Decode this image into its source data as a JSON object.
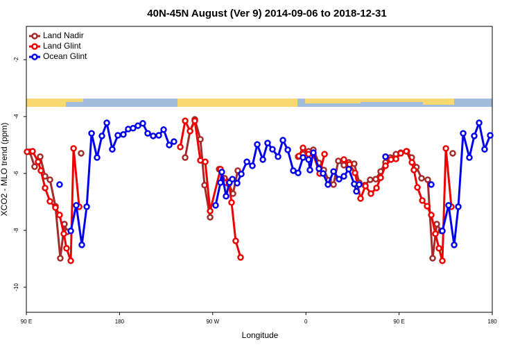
{
  "chart_data": {
    "type": "line",
    "title": "40N-45N August (Ver 9)   2014-09-06 to 2018-12-31",
    "xlabel": "Longitude",
    "ylabel": "XCO2 - MLO trend (ppm)",
    "xlim": [
      90,
      540
    ],
    "ylim": [
      -10.88,
      -0.83
    ],
    "xticks": [
      {
        "value": 90,
        "label": "90 E"
      },
      {
        "value": 180,
        "label": "180"
      },
      {
        "value": 270,
        "label": "90 W"
      },
      {
        "value": 360,
        "label": "0"
      },
      {
        "value": 450,
        "label": "90 E"
      },
      {
        "value": 540,
        "label": "180"
      }
    ],
    "yticks": [
      -2,
      -4,
      -6,
      -8,
      -10
    ],
    "legend": "top-left",
    "series": [
      {
        "name": "Land Nadir",
        "color": "#a52a2a",
        "x": [
          93.3,
          98,
          103.4,
          108.1,
          112.8,
          118.1,
          122.8,
          126.8,
          129.5,
          null,
          142.9,
          null,
          243.4,
          248.1,
          252.7,
          258.1,
          262.1,
          267.5,
          null,
          276.2,
          281.5,
          285.5,
          289.6,
          294.2,
          null,
          352.5,
          357.2,
          362.6,
          367.2,
          372.6,
          377.3,
          382,
          386.7,
          391.3,
          396.7,
          401.4,
          406.7,
          411.4,
          416.8,
          422.1,
          427.5,
          432.2,
          436.9,
          441.6,
          447,
          451.6,
          457.6,
          462.2,
          466.8,
          471.7,
          477.7,
          482.4,
          486.4,
          490.5,
          null,
          501.8
        ],
        "values": [
          -5.24,
          -5.76,
          -5.41,
          -6.1,
          -6.22,
          -7.15,
          -8.98,
          -7.78,
          -8.05,
          null,
          -5.29,
          null,
          -5.44,
          -4.51,
          -4.1,
          -4.8,
          -6.41,
          -7.54,
          null,
          -5.85,
          -6.17,
          -6.37,
          -6.71,
          -5.9,
          null,
          -5.41,
          -5.32,
          -5.22,
          -5.17,
          -5.63,
          -5.88,
          -6.24,
          -6.39,
          -5.56,
          -5.71,
          -5.61,
          -5.66,
          -6.32,
          -6.41,
          -6.22,
          -6.2,
          -5.93,
          -5.61,
          -5.44,
          -5.32,
          -5.27,
          -5.22,
          -5.44,
          -5.78,
          -6.17,
          -6.22,
          -8.98,
          -7.78,
          -8.02,
          null,
          -5.29
        ]
      },
      {
        "name": "Land Glint",
        "color": "#ee0000",
        "x": [
          90.7,
          96,
          101.4,
          104.1,
          108.1,
          112.8,
          118.1,
          122.1,
          126.2,
          128.8,
          132.9,
          135.6,
          141,
          null,
          238.7,
          243.4,
          248.1,
          252.7,
          258.1,
          262.8,
          267.5,
          277.5,
          282.2,
          285.5,
          288.2,
          292.2,
          296.9,
          null,
          353.2,
          357.2,
          362.6,
          367.2,
          373.3,
          378,
          null,
          396.7,
          402.1,
          407.4,
          412.8,
          417.5,
          422.8,
          428.2,
          432.2,
          436.9,
          442.2,
          447,
          451.6,
          457,
          462.4,
          464.3,
          467.7,
          472.4,
          477.1,
          481.1,
          485.1,
          488.5,
          491.8,
          495.2,
          500.5
        ],
        "values": [
          -5.24,
          -5.22,
          -5.59,
          -5.9,
          -6.51,
          -6.98,
          -7.2,
          -7.46,
          -8.12,
          -8.63,
          -9.07,
          -5.12,
          -7.17,
          null,
          -5.07,
          -4.15,
          -4.51,
          -4.15,
          -5.54,
          -5.59,
          -7.32,
          -5.85,
          -6.32,
          -6.29,
          -7.02,
          -8.37,
          -8.95,
          null,
          -5.39,
          -5.1,
          -5.32,
          -5.32,
          -6.0,
          -5.32,
          null,
          -5.51,
          -5.68,
          -5.98,
          -6.88,
          -6.44,
          -6.71,
          -6.51,
          -6.15,
          -5.73,
          -5.51,
          -5.49,
          -5.29,
          -5.22,
          -5.61,
          -5.88,
          -6.49,
          -6.95,
          -7.15,
          -7.46,
          -8.12,
          -8.63,
          -9.07,
          -5.12,
          -7.17
        ]
      },
      {
        "name": "Ocean Glint",
        "color": "#0000ee",
        "x": [
          122.1,
          null,
          132.9,
          138.2,
          143.6,
          148.3,
          153,
          158.3,
          163,
          167.7,
          173,
          178.4,
          183.7,
          188.4,
          193.1,
          197.8,
          202.5,
          207.2,
          212.5,
          217.9,
          222.6,
          228,
          232.6,
          null,
          272.8,
          277.5,
          278.8,
          282.9,
          286.2,
          289,
          293.6,
          297.6,
          303,
          308.3,
          313,
          318.4,
          323,
          327.7,
          333.1,
          337.8,
          342.5,
          347.8,
          352.5,
          357.2,
          362.6,
          363.9,
          367.2,
          372.6,
          376.6,
          381.3,
          386.7,
          392,
          396.7,
          401.4,
          406.7,
          408.8,
          411.4,
          null,
          436.9,
          null,
          481.1,
          null,
          491.8,
          497.8,
          503.2,
          507.2,
          511.9,
          517.9,
          522.6,
          527.3,
          532.6,
          538
        ],
        "values": [
          -6.39,
          null,
          -8.02,
          -7.12,
          -8.51,
          -7.17,
          -4.59,
          -5.44,
          -4.68,
          -4.22,
          -5.15,
          -4.66,
          -4.63,
          -4.44,
          -4.41,
          -4.32,
          -4.24,
          -4.59,
          -4.68,
          -4.66,
          -4.46,
          -5.0,
          -4.88,
          null,
          -7.12,
          -6.32,
          -5.95,
          -6.8,
          -6.32,
          -6.2,
          -6.34,
          -6.02,
          -5.59,
          -5.73,
          -4.98,
          -5.51,
          -4.93,
          -5.15,
          -5.41,
          -4.83,
          -5.17,
          -5.9,
          -5.98,
          -5.44,
          -5.51,
          -5.88,
          -5.27,
          -5.83,
          -6.0,
          -6.39,
          -5.93,
          -6.2,
          -6.1,
          -5.85,
          -6.37,
          -6.63,
          -6.39,
          null,
          -5.41,
          null,
          -6.39,
          null,
          -8.02,
          -7.12,
          -8.51,
          -7.17,
          -4.59,
          -5.44,
          -4.68,
          -4.22,
          -5.15,
          -4.66
        ]
      }
    ]
  }
}
